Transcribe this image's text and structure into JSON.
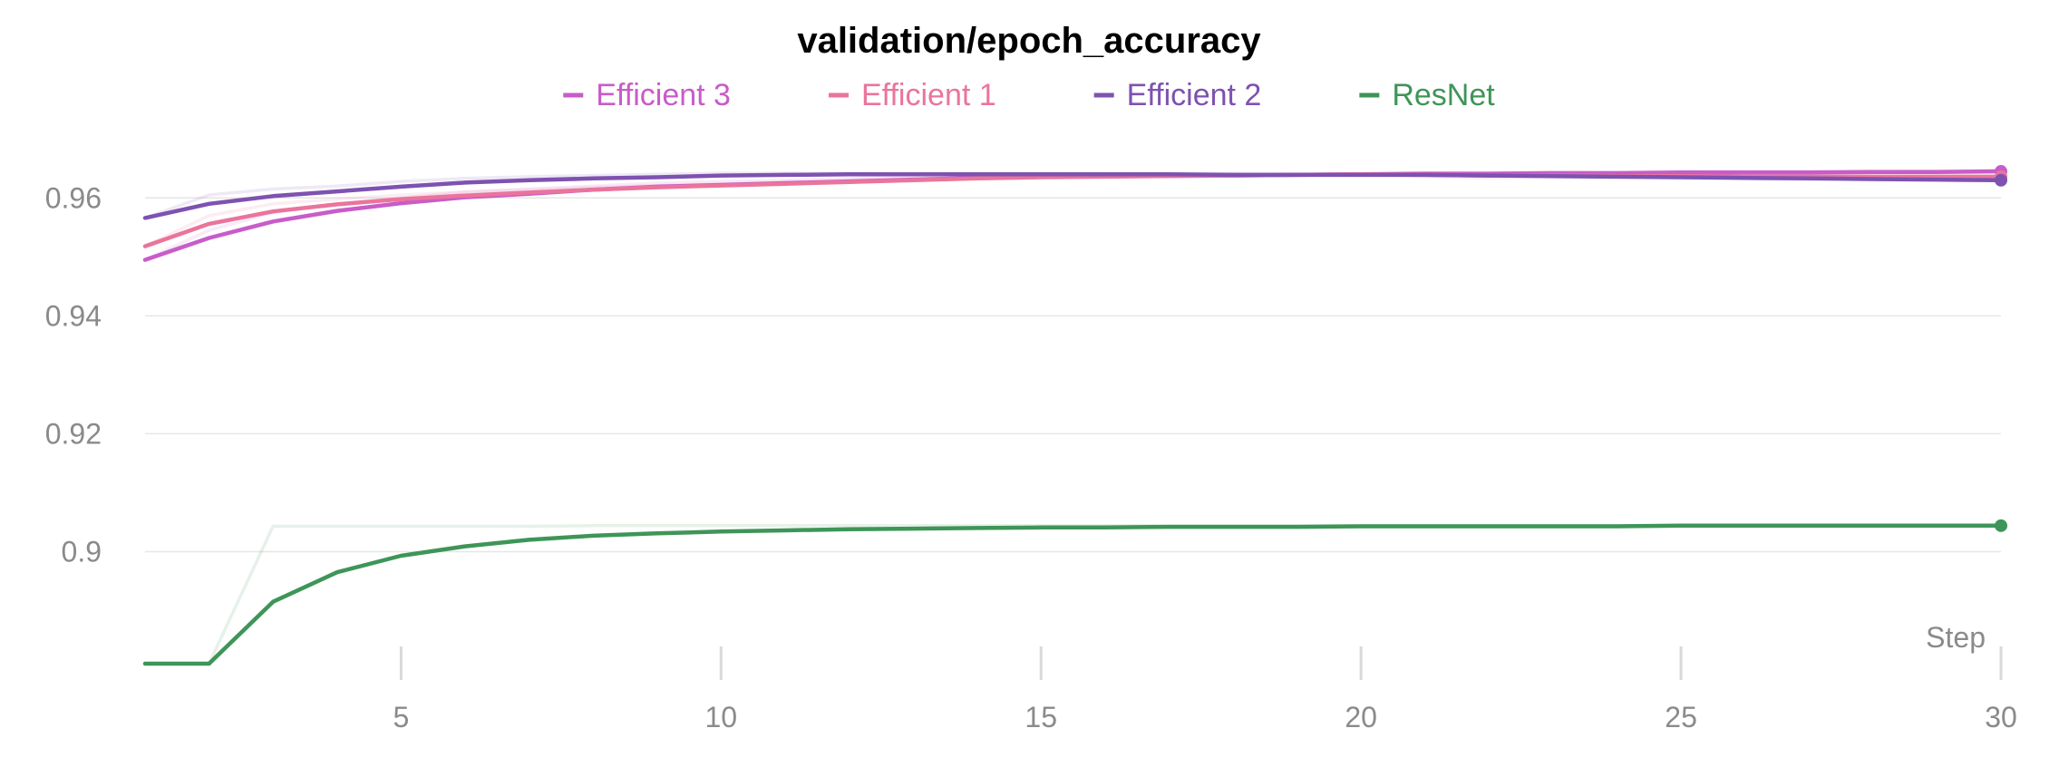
{
  "chart_data": {
    "type": "line",
    "title": "validation/epoch_accuracy",
    "xlabel": "Step",
    "ylabel": "",
    "xlim": [
      1,
      30
    ],
    "ylim": [
      0.881,
      0.9705
    ],
    "x_ticks": [
      5,
      10,
      15,
      20,
      25,
      30
    ],
    "y_ticks": [
      {
        "value": 0.9,
        "label": "0.9"
      },
      {
        "value": 0.92,
        "label": "0.92"
      },
      {
        "value": 0.94,
        "label": "0.94"
      },
      {
        "value": 0.96,
        "label": "0.96"
      }
    ],
    "grid": "horizontal",
    "legend_position": "top-center",
    "x": [
      1,
      2,
      3,
      4,
      5,
      6,
      7,
      8,
      9,
      10,
      11,
      12,
      13,
      14,
      15,
      16,
      17,
      18,
      19,
      20,
      21,
      22,
      23,
      24,
      25,
      26,
      27,
      28,
      29,
      30
    ],
    "series": [
      {
        "name": "Efficient 3",
        "color": "#c85cc8",
        "values": [
          0.9495,
          0.9532,
          0.956,
          0.9578,
          0.9591,
          0.9601,
          0.9607,
          0.9614,
          0.9619,
          0.9622,
          0.9625,
          0.9628,
          0.9631,
          0.9634,
          0.9636,
          0.9637,
          0.9638,
          0.9638,
          0.9639,
          0.964,
          0.9641,
          0.9641,
          0.9642,
          0.9642,
          0.9643,
          0.9643,
          0.9643,
          0.9644,
          0.9644,
          0.9645
        ],
        "raw_values": [
          0.9495,
          0.9545,
          0.9575,
          0.959,
          0.96,
          0.961,
          0.9615,
          0.962,
          0.9625,
          0.9628,
          0.963,
          0.9633,
          0.9636,
          0.9638,
          0.964,
          0.964,
          0.9641,
          0.9642,
          0.9641,
          0.9642,
          0.9643,
          0.9643,
          0.9644,
          0.9644,
          0.9645,
          0.9645,
          0.9645,
          0.9646,
          0.9646,
          0.9647
        ]
      },
      {
        "name": "Efficient 1",
        "color": "#ea749c",
        "values": [
          0.9518,
          0.9556,
          0.9577,
          0.9589,
          0.9598,
          0.9604,
          0.9609,
          0.9614,
          0.9618,
          0.9621,
          0.9624,
          0.9627,
          0.963,
          0.9633,
          0.9635,
          0.9636,
          0.9637,
          0.9638,
          0.9639,
          0.964,
          0.9639,
          0.9638,
          0.9638,
          0.9637,
          0.9637,
          0.9636,
          0.9636,
          0.9636,
          0.9636,
          0.9636
        ],
        "raw_values": [
          0.9518,
          0.957,
          0.959,
          0.9598,
          0.9605,
          0.961,
          0.9614,
          0.9618,
          0.9621,
          0.9624,
          0.9627,
          0.963,
          0.9633,
          0.9635,
          0.9637,
          0.9638,
          0.9639,
          0.964,
          0.964,
          0.9641,
          0.9636,
          0.9634,
          0.9636,
          0.9635,
          0.9635,
          0.9635,
          0.9635,
          0.9635,
          0.9636,
          0.9636
        ]
      },
      {
        "name": "Efficient 2",
        "color": "#7e52b0",
        "values": [
          0.9566,
          0.959,
          0.9603,
          0.9611,
          0.9619,
          0.9626,
          0.963,
          0.9633,
          0.9635,
          0.9638,
          0.9639,
          0.964,
          0.964,
          0.964,
          0.964,
          0.964,
          0.964,
          0.9639,
          0.9639,
          0.9639,
          0.9639,
          0.9638,
          0.9637,
          0.9636,
          0.9635,
          0.9634,
          0.9633,
          0.9632,
          0.9631,
          0.963
        ],
        "raw_values": [
          0.9566,
          0.9605,
          0.9615,
          0.962,
          0.9628,
          0.9633,
          0.9636,
          0.9638,
          0.964,
          0.9642,
          0.9642,
          0.9642,
          0.9641,
          0.9641,
          0.9641,
          0.9641,
          0.964,
          0.964,
          0.9639,
          0.9639,
          0.9639,
          0.9637,
          0.9636,
          0.9635,
          0.9634,
          0.9633,
          0.9632,
          0.9631,
          0.963,
          0.9629
        ]
      },
      {
        "name": "ResNet",
        "color": "#3e9558",
        "values": [
          0.881,
          0.881,
          0.8915,
          0.8965,
          0.8993,
          0.9009,
          0.902,
          0.9027,
          0.9031,
          0.9034,
          0.9036,
          0.9038,
          0.9039,
          0.904,
          0.9041,
          0.9041,
          0.9042,
          0.9042,
          0.9042,
          0.9043,
          0.9043,
          0.9043,
          0.9043,
          0.9043,
          0.9044,
          0.9044,
          0.9044,
          0.9044,
          0.9044,
          0.9044
        ],
        "raw_values": [
          0.881,
          0.881,
          0.9043,
          0.9043,
          0.9043,
          0.9043,
          0.9043,
          0.9044,
          0.9044,
          0.9044,
          0.9044,
          0.9044,
          0.9044,
          0.9044,
          0.9044,
          0.9044,
          0.9044,
          0.9044,
          0.9044,
          0.9044,
          0.9044,
          0.9044,
          0.9044,
          0.9044,
          0.9044,
          0.9044,
          0.9044,
          0.9044,
          0.9044,
          0.9044
        ]
      }
    ]
  }
}
